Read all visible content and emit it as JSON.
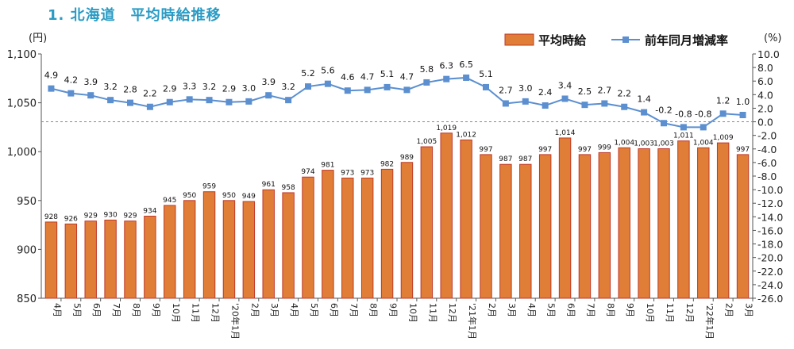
{
  "header": {
    "title": "1.  北海道　平均時給推移"
  },
  "chart_data": {
    "type": "bar+line",
    "title": "1.  北海道　平均時給推移",
    "y_left_unit": "(円)",
    "y_right_unit": "(%)",
    "y_left_range": [
      850,
      1100
    ],
    "y_left_ticks": [
      "850",
      "900",
      "950",
      "1,000",
      "1,050",
      "1,100"
    ],
    "y_right_range": [
      -26,
      10
    ],
    "y_right_ticks": [
      "-26.0",
      "-24.0",
      "-22.0",
      "-20.0",
      "-18.0",
      "-16.0",
      "-14.0",
      "-12.0",
      "-10.0",
      "-8.0",
      "-6.0",
      "-4.0",
      "-2.0",
      "0.0",
      "2.0",
      "4.0",
      "6.0",
      "8.0",
      "10.0"
    ],
    "categories": [
      "4月",
      "5月",
      "6月",
      "7月",
      "8月",
      "9月",
      "10月",
      "11月",
      "12月",
      "'20年1月",
      "2月",
      "3月",
      "4月",
      "5月",
      "6月",
      "7月",
      "8月",
      "9月",
      "10月",
      "11月",
      "12月",
      "'21年1月",
      "2月",
      "3月",
      "4月",
      "5月",
      "6月",
      "7月",
      "8月",
      "9月",
      "10月",
      "11月",
      "12月",
      "'22年1月",
      "2月",
      "3月"
    ],
    "legend": {
      "bar": "平均時給",
      "line": "前年同月増減率",
      "position": "top-right"
    },
    "series": [
      {
        "name": "平均時給",
        "type": "bar",
        "axis": "left",
        "color": "#e07d36",
        "edge": "#c0392b",
        "values": [
          928,
          926,
          929,
          930,
          929,
          934,
          945,
          950,
          959,
          950,
          949,
          961,
          958,
          974,
          981,
          973,
          973,
          982,
          989,
          1005,
          1019,
          1012,
          997,
          987,
          987,
          997,
          1014,
          997,
          999,
          1004,
          1003,
          1003,
          1011,
          1004,
          1009,
          997
        ],
        "labels": [
          "928",
          "926",
          "929",
          "930",
          "929",
          "934",
          "945",
          "950",
          "959",
          "950",
          "949",
          "961",
          "958",
          "974",
          "981",
          "973",
          "973",
          "982",
          "989",
          "1,005",
          "1,019",
          "1,012",
          "997",
          "987",
          "987",
          "997",
          "1,014",
          "997",
          "999",
          "1,004",
          "1,003",
          "1,003",
          "1,011",
          "1,004",
          "1,009",
          "997"
        ]
      },
      {
        "name": "前年同月増減率",
        "type": "line",
        "axis": "right",
        "color": "#5b8fd0",
        "values": [
          4.9,
          4.2,
          3.9,
          3.2,
          2.8,
          2.2,
          2.9,
          3.3,
          3.2,
          2.9,
          3.0,
          3.9,
          3.2,
          5.2,
          5.6,
          4.6,
          4.7,
          5.1,
          4.7,
          5.8,
          6.3,
          6.5,
          5.1,
          2.7,
          3.0,
          2.4,
          3.4,
          2.5,
          2.7,
          2.2,
          1.4,
          -0.2,
          -0.8,
          -0.8,
          1.2,
          1.0
        ],
        "labels": [
          "4.9",
          "4.2",
          "3.9",
          "3.2",
          "2.8",
          "2.2",
          "2.9",
          "3.3",
          "3.2",
          "2.9",
          "3.0",
          "3.9",
          "3.2",
          "5.2",
          "5.6",
          "4.6",
          "4.7",
          "5.1",
          "4.7",
          "5.8",
          "6.3",
          "6.5",
          "5.1",
          "2.7",
          "3.0",
          "2.4",
          "3.4",
          "2.5",
          "2.7",
          "2.2",
          "1.4",
          "-0.2",
          "-0.8",
          "-0.8",
          "1.2",
          "1.0"
        ]
      }
    ],
    "reference_line": {
      "axis": "right",
      "value": 0,
      "style": "dashed"
    }
  }
}
